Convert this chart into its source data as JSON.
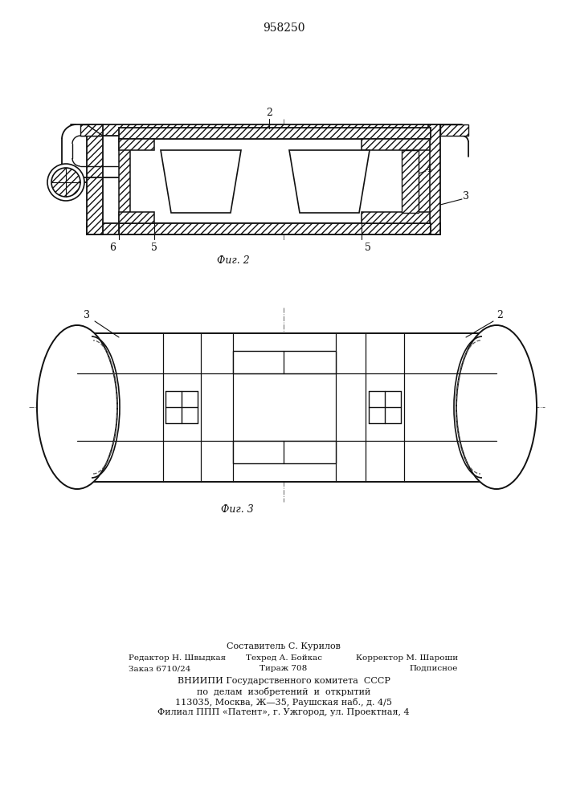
{
  "patent_number": "958250",
  "fig2_caption": "Фиг. 2",
  "fig3_caption": "Фиг. 3",
  "bg_color": "#ffffff",
  "lc": "#111111",
  "footer": [
    [
      "Составитель С. Курилов",
      353,
      800,
      "center",
      8
    ],
    [
      "Редактор Н. Швыдкая",
      160,
      815,
      "left",
      7.5
    ],
    [
      "Техред А. Бойкас",
      353,
      815,
      "center",
      7.5
    ],
    [
      "Корректор М. Шароши",
      570,
      815,
      "right",
      7.5
    ],
    [
      "Заказ 6710/24",
      160,
      828,
      "left",
      7.5
    ],
    [
      "Тираж 708",
      353,
      828,
      "center",
      7.5
    ],
    [
      "Подписное",
      570,
      828,
      "right",
      7.5
    ],
    [
      "ВНИИПИ Государственного комитета  СССР",
      353,
      843,
      "center",
      8
    ],
    [
      "по  делам  изобретений  и  открытий",
      353,
      856,
      "center",
      8
    ],
    [
      "113035, Москва, Ж—35, Раушская наб., д. 4/5",
      353,
      869,
      "center",
      8
    ],
    [
      "Филиал ППП «Патент», г. Ужгород, ул. Проектная, 4",
      353,
      882,
      "center",
      8
    ]
  ]
}
